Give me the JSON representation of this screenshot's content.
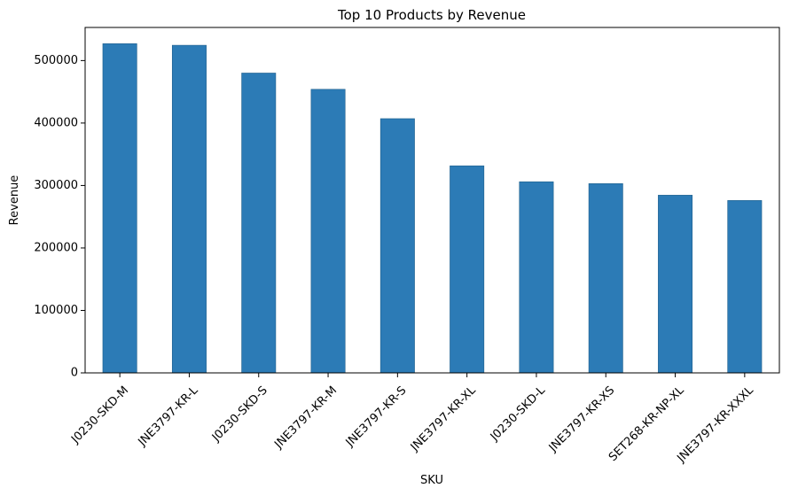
{
  "chart_data": {
    "type": "bar",
    "title": "Top 10 Products by Revenue",
    "xlabel": "SKU",
    "ylabel": "Revenue",
    "categories": [
      "J0230-SKD-M",
      "JNE3797-KR-L",
      "J0230-SKD-S",
      "JNE3797-KR-M",
      "JNE3797-KR-S",
      "JNE3797-KR-XL",
      "J0230-SKD-L",
      "JNE3797-KR-XS",
      "SET268-KR-NP-XL",
      "JNE3797-KR-XXXL"
    ],
    "values": [
      527000,
      524500,
      480000,
      454000,
      407000,
      331500,
      306000,
      303000,
      284500,
      276000
    ],
    "yticks": [
      0,
      100000,
      200000,
      300000,
      400000,
      500000
    ],
    "ytick_labels": [
      "0",
      "100000",
      "200000",
      "300000",
      "400000",
      "500000"
    ],
    "ylim": [
      0,
      553000
    ],
    "bar_color": "#2c7bb6",
    "grid": false,
    "legend": "none"
  }
}
